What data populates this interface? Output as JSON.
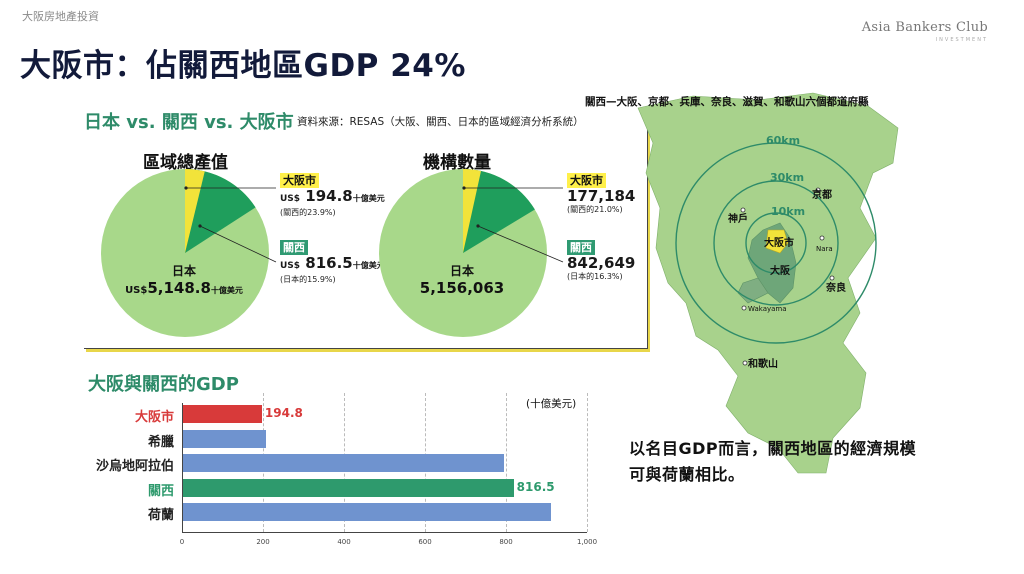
{
  "header": {
    "supertitle": "大阪房地產投資",
    "brand": "Asia Bankers Club",
    "brand_sub": "INVESTMENT",
    "title": "大阪市：佔關西地區GDP 24%"
  },
  "comparison": {
    "section_title": "日本 vs. 關西 vs. 大阪市",
    "source": "資料來源：RESAS（大阪、關西、日本的區域經濟分析系統）"
  },
  "colors": {
    "osaka": "#f2e33a",
    "kansai": "#1f9e5c",
    "japan": "#a8d88a",
    "bar_default": "#6f93cf",
    "bar_osaka": "#d83a3a",
    "bar_kansai": "#2e9a6d",
    "map_land": "#a8d28c",
    "map_kansai": "#6ea679"
  },
  "pies": [
    {
      "title": "區域總產值",
      "center_label": "日本",
      "center_prefix": "US$",
      "center_value": "5,148.8",
      "center_unit": "十億美元",
      "osaka_share": 0.0378,
      "kansai_share": 0.1586,
      "callouts": [
        {
          "tag": "大阪市",
          "prefix": "US$",
          "value": "194.8",
          "unit": "十億美元",
          "note": "(關西的23.9%)"
        },
        {
          "tag": "關西",
          "prefix": "US$",
          "value": "816.5",
          "unit": "十億美元",
          "note": "(日本的15.9%)"
        }
      ]
    },
    {
      "title": "機構數量",
      "center_label": "日本",
      "center_prefix": "",
      "center_value": "5,156,063",
      "center_unit": "",
      "osaka_share": 0.0344,
      "kansai_share": 0.1634,
      "callouts": [
        {
          "tag": "大阪市",
          "prefix": "",
          "value": "177,184",
          "unit": "",
          "note": "(關西的21.0%)"
        },
        {
          "tag": "關西",
          "prefix": "",
          "value": "842,649",
          "unit": "",
          "note": "(日本的16.3%)"
        }
      ]
    }
  ],
  "map": {
    "caption": "關西—大阪、京都、兵庫、奈良、滋賀、和歌山六個都道府縣",
    "rings": [
      "60km",
      "30km",
      "10km"
    ],
    "places": {
      "kyoto": "京都",
      "kobe": "神戶",
      "osaka_city": "大阪市",
      "osaka": "大阪",
      "nara_en": "Nara",
      "nara": "奈良",
      "wakayama_en": "Wakayama",
      "wakayama": "和歌山"
    }
  },
  "chart_data": [
    {
      "type": "pie",
      "title": "區域總產值",
      "labels": [
        "大阪市",
        "關西",
        "日本"
      ],
      "values": [
        194.8,
        816.5,
        5148.8
      ],
      "unit": "十億美元"
    },
    {
      "type": "pie",
      "title": "機構數量",
      "labels": [
        "大阪市",
        "關西",
        "日本"
      ],
      "values": [
        177184,
        842649,
        5156063
      ]
    },
    {
      "type": "bar",
      "orientation": "horizontal",
      "title": "大阪與關西的GDP",
      "unit_label": "(十億美元)",
      "categories": [
        "大阪市",
        "希臘",
        "沙烏地阿拉伯",
        "關西",
        "荷蘭"
      ],
      "values": [
        194.8,
        205,
        793,
        816.5,
        908
      ],
      "data_labels": [
        "194.8",
        "",
        "",
        "816.5",
        ""
      ],
      "xlim": [
        0,
        1000
      ],
      "xticks": [
        "0",
        "200",
        "400",
        "600",
        "800",
        "1,000"
      ],
      "grid": true
    }
  ],
  "conclusion": "以名目GDP而言，關西地區的經濟規模可與荷蘭相比。"
}
